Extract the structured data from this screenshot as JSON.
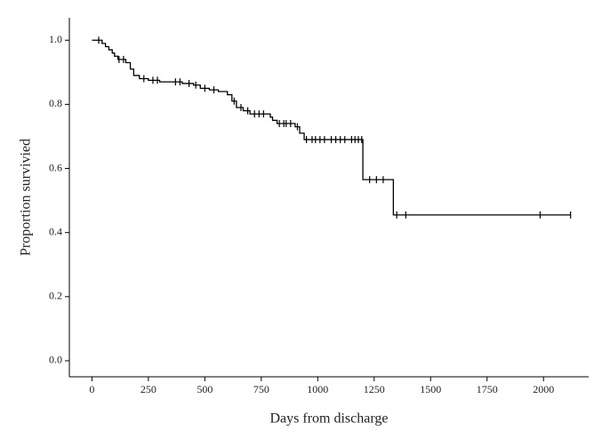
{
  "chart_data": {
    "type": "line",
    "step": true,
    "xlabel": "Days from discharge",
    "ylabel": "Proportion survivied",
    "color": "#000000",
    "curve": {
      "x": [
        0,
        45,
        60,
        75,
        90,
        100,
        115,
        150,
        170,
        185,
        210,
        250,
        300,
        400,
        450,
        480,
        520,
        560,
        600,
        620,
        640,
        670,
        700,
        790,
        800,
        820,
        900,
        920,
        940,
        1200,
        1335,
        2120
      ],
      "values": [
        1.0,
        0.99,
        0.98,
        0.97,
        0.96,
        0.95,
        0.94,
        0.93,
        0.91,
        0.89,
        0.88,
        0.875,
        0.87,
        0.865,
        0.86,
        0.85,
        0.845,
        0.84,
        0.83,
        0.81,
        0.79,
        0.78,
        0.77,
        0.76,
        0.75,
        0.74,
        0.73,
        0.71,
        0.69,
        0.565,
        0.455,
        0.455
      ]
    },
    "censored": {
      "x": [
        30,
        120,
        140,
        230,
        270,
        290,
        370,
        390,
        430,
        460,
        500,
        540,
        630,
        660,
        690,
        720,
        740,
        760,
        830,
        850,
        860,
        880,
        910,
        950,
        975,
        990,
        1010,
        1030,
        1060,
        1080,
        1100,
        1120,
        1150,
        1165,
        1180,
        1195,
        1230,
        1260,
        1290,
        1350,
        1390,
        1985,
        2120
      ],
      "values": [
        1.0,
        0.94,
        0.94,
        0.88,
        0.875,
        0.875,
        0.87,
        0.87,
        0.865,
        0.86,
        0.85,
        0.845,
        0.81,
        0.79,
        0.78,
        0.77,
        0.77,
        0.77,
        0.74,
        0.74,
        0.74,
        0.74,
        0.73,
        0.69,
        0.69,
        0.69,
        0.69,
        0.69,
        0.69,
        0.69,
        0.69,
        0.69,
        0.69,
        0.69,
        0.69,
        0.69,
        0.565,
        0.565,
        0.565,
        0.455,
        0.455,
        0.455,
        0.455
      ]
    },
    "xlim": [
      -100,
      2200
    ],
    "xticks": [
      0,
      250,
      500,
      750,
      1000,
      1250,
      1500,
      1750,
      2000
    ],
    "ylim": [
      -0.05,
      1.07
    ],
    "yticks": [
      {
        "value": 0.0,
        "label": "0.0"
      },
      0.2,
      0.4,
      0.6,
      0.8,
      {
        "value": 1.0,
        "label": "1.0"
      }
    ]
  }
}
